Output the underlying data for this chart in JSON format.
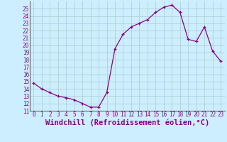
{
  "xlabel": "Windchill (Refroidissement éolien,°C)",
  "x": [
    0,
    1,
    2,
    3,
    4,
    5,
    6,
    7,
    8,
    9,
    10,
    11,
    12,
    13,
    14,
    15,
    16,
    17,
    18,
    19,
    20,
    21,
    22,
    23
  ],
  "y": [
    14.8,
    14.0,
    13.5,
    13.0,
    12.8,
    12.5,
    12.0,
    11.5,
    11.5,
    13.5,
    19.5,
    21.5,
    22.5,
    23.0,
    23.5,
    24.5,
    25.2,
    25.5,
    24.5,
    20.8,
    20.5,
    22.5,
    19.2,
    17.8
  ],
  "line_color": "#880088",
  "marker": "+",
  "bg_color": "#cceeff",
  "grid_color": "#aacccc",
  "ylim": [
    11,
    26
  ],
  "xlim": [
    -0.5,
    23.5
  ],
  "yticks": [
    11,
    12,
    13,
    14,
    15,
    16,
    17,
    18,
    19,
    20,
    21,
    22,
    23,
    24,
    25
  ],
  "xticks": [
    0,
    1,
    2,
    3,
    4,
    5,
    6,
    7,
    8,
    9,
    10,
    11,
    12,
    13,
    14,
    15,
    16,
    17,
    18,
    19,
    20,
    21,
    22,
    23
  ],
  "xlabel_fontsize": 7.5,
  "tick_fontsize": 5.5
}
